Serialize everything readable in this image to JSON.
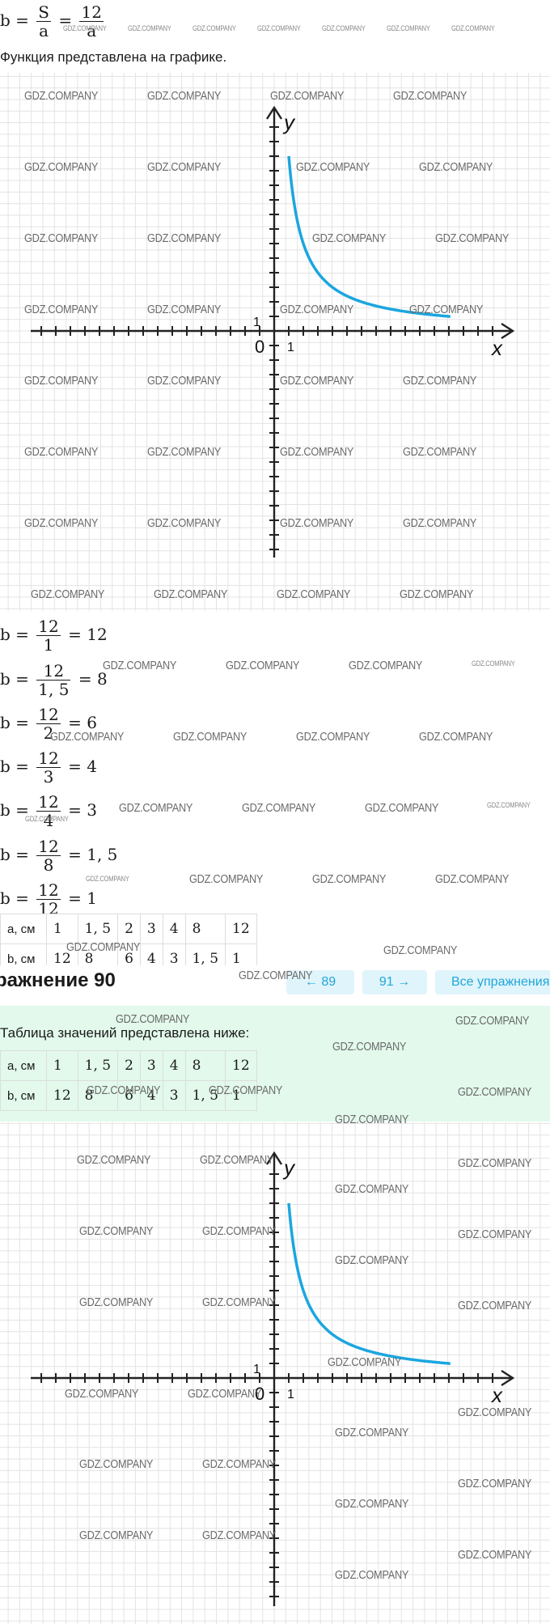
{
  "watermark": "GDZ.COMPANY",
  "top_formula": {
    "lhs": "b",
    "num": "S",
    "den": "a",
    "num2": "12",
    "den2": "a"
  },
  "intro_text": "Функция представлена на графике.",
  "graph": {
    "x_label": "x",
    "y_label": "y",
    "origin": "0",
    "one_x": "1",
    "one_y": "1",
    "curve_color": "#1ba6df"
  },
  "calculations": [
    {
      "lhs": "b",
      "num": "12",
      "den": "1",
      "result": "12"
    },
    {
      "lhs": "b",
      "num": "12",
      "den": "1, 5",
      "result": "8"
    },
    {
      "lhs": "b",
      "num": "12",
      "den": "2",
      "result": "6"
    },
    {
      "lhs": "b",
      "num": "12",
      "den": "3",
      "result": "4"
    },
    {
      "lhs": "b",
      "num": "12",
      "den": "4",
      "result": "3"
    },
    {
      "lhs": "b",
      "num": "12",
      "den": "8",
      "result": "1, 5"
    },
    {
      "lhs": "b",
      "num": "12",
      "den": "12",
      "result": "1"
    }
  ],
  "table1": {
    "row_a": [
      "a, см",
      "1",
      "1, 5",
      "2",
      "3",
      "4",
      "8",
      "12"
    ],
    "row_b": [
      "b, см",
      "12",
      "8",
      "6",
      "4",
      "3",
      "1, 5",
      "1"
    ]
  },
  "nav": {
    "title": "ражнение 90",
    "prev": "← 89",
    "next": "91 →",
    "all": "Все упражнения"
  },
  "table_intro": "Таблица значений представлена ниже:",
  "table2": {
    "row_a": [
      "a, см",
      "1",
      "1, 5",
      "2",
      "3",
      "4",
      "8",
      "12"
    ],
    "row_b": [
      "b, см",
      "12",
      "8",
      "6",
      "4",
      "3",
      "1, 5",
      "1"
    ]
  }
}
